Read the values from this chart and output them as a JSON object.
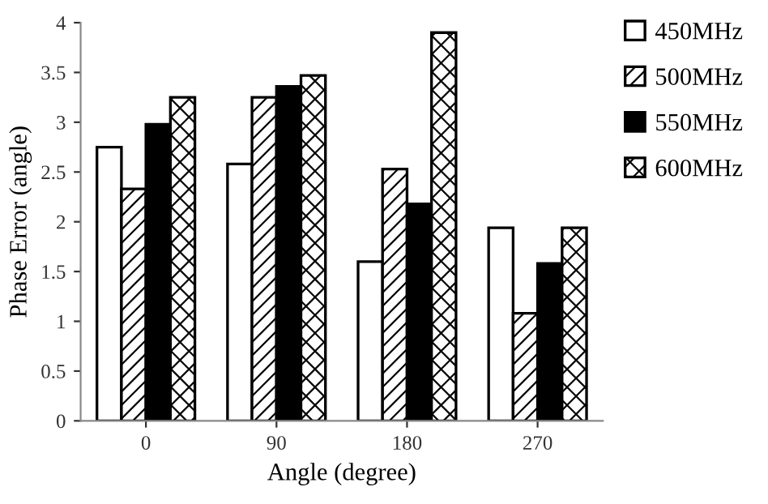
{
  "chart_data": {
    "type": "bar",
    "xlabel": "Angle (degree)",
    "ylabel": "Phase Error (angle)",
    "categories": [
      "0",
      "90",
      "180",
      "270"
    ],
    "series": [
      {
        "name": "450MHz",
        "color": "#ffffff",
        "values": [
          2.75,
          2.58,
          1.6,
          1.94
        ]
      },
      {
        "name": "500MHz",
        "color": "#000000",
        "values": [
          2.33,
          3.25,
          2.53,
          1.08
        ]
      },
      {
        "name": "550MHz",
        "color": "#000000",
        "values": [
          2.98,
          3.36,
          2.18,
          1.58
        ]
      },
      {
        "name": "600MHz",
        "color": "#000000",
        "values": [
          3.25,
          3.47,
          3.9,
          1.94
        ]
      }
    ],
    "ylim": [
      0,
      4
    ],
    "yticks": [
      0,
      0.5,
      1,
      1.5,
      2,
      2.5,
      3,
      3.5,
      4
    ],
    "grid": false,
    "legend": "top right"
  }
}
